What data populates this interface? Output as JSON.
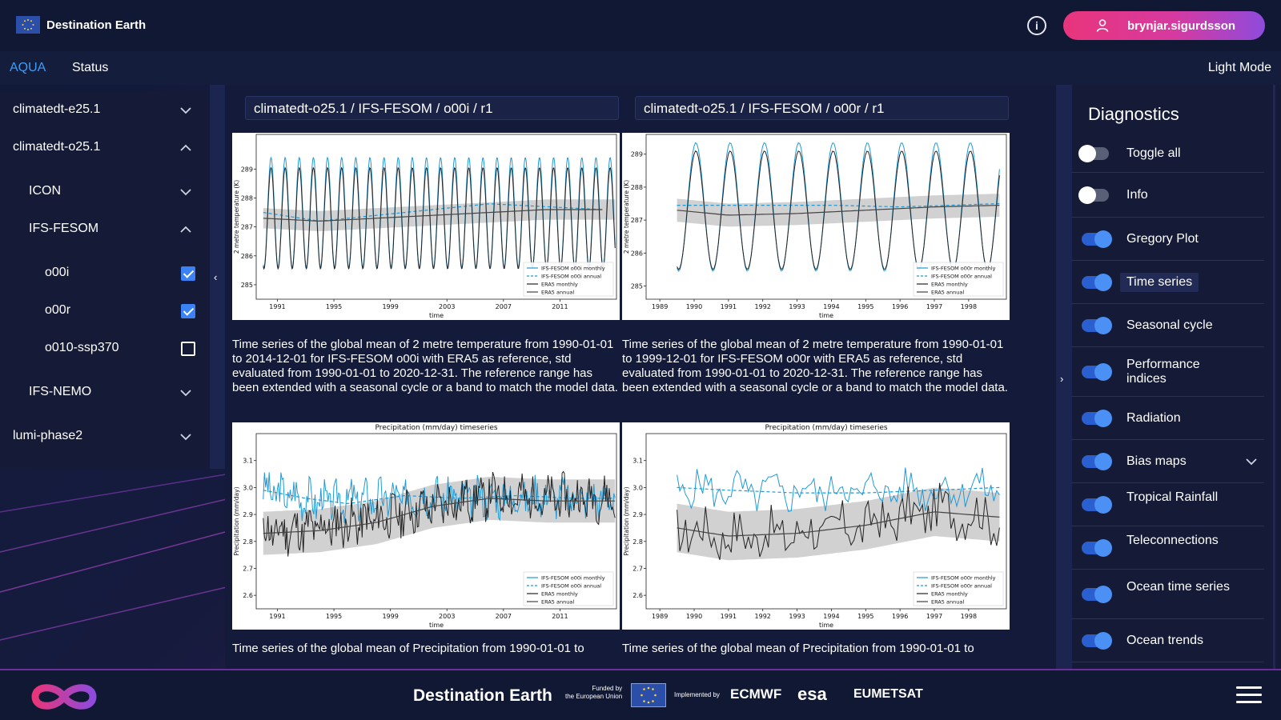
{
  "header": {
    "brand": "Destination Earth",
    "user": "brynjar.sigurdsson"
  },
  "nav": {
    "tabs": [
      {
        "label": "AQUA",
        "active": true
      },
      {
        "label": "Status",
        "active": false
      }
    ],
    "light_mode": "Light Mode"
  },
  "tree": {
    "items": [
      {
        "label": "climatedt-e25.1",
        "expanded": false
      },
      {
        "label": "climatedt-o25.1",
        "expanded": true
      },
      {
        "label": "ICON",
        "expanded": false
      },
      {
        "label": "IFS-FESOM",
        "expanded": true
      },
      {
        "label": "o00i",
        "checked": true
      },
      {
        "label": "o00r",
        "checked": true
      },
      {
        "label": "o010-ssp370",
        "checked": false
      },
      {
        "label": "IFS-NEMO",
        "expanded": false
      },
      {
        "label": "lumi-phase2",
        "expanded": false
      }
    ]
  },
  "panels": [
    {
      "path": "climatedt-o25.1 / IFS-FESOM / o00i / r1",
      "temp_caption": "Time series of the global mean of 2 metre temperature from 1990-01-01 to 2014-12-01 for IFS-FESOM o00i with ERA5 as reference, std evaluated from 1990-01-01 to 2020-12-31. The reference range has been extended with a seasonal cycle or a band to match the model data.",
      "precip_caption": "Time series of the global mean of Precipitation from 1990-01-01 to"
    },
    {
      "path": "climatedt-o25.1 / IFS-FESOM / o00r / r1",
      "temp_caption": "Time series of the global mean of 2 metre temperature from 1990-01-01 to 1999-12-01 for IFS-FESOM o00r with ERA5 as reference, std evaluated from 1990-01-01 to 2020-12-31. The reference range has been extended with a seasonal cycle or a band to match the model data.",
      "precip_caption": "Time series of the global mean of Precipitation from 1990-01-01 to"
    }
  ],
  "chart_data": [
    {
      "id": "temp_o00i",
      "type": "line",
      "title": "",
      "xlabel": "time",
      "ylabel": "2 metre temperature (K)",
      "xlim": [
        1989.5,
        2015
      ],
      "ylim": [
        284.5,
        290.2
      ],
      "xticks": [
        1991,
        1995,
        1999,
        2003,
        2007,
        2011
      ],
      "yticks": [
        285,
        286,
        287,
        288,
        289
      ],
      "legend": [
        "IFS-FESOM o00i monthly",
        "IFS-FESOM o00i annual",
        "ERA5 monthly",
        "ERA5 annual"
      ],
      "series": [
        {
          "name": "IFS-FESOM o00i monthly",
          "kind": "seasonal",
          "start": 1990,
          "end": 2014.9,
          "mean": 287.5,
          "amp": 1.9,
          "color": "#1f9ad6",
          "dash": false
        },
        {
          "name": "IFS-FESOM o00i annual",
          "kind": "trend",
          "start": 1990,
          "end": 2014.9,
          "x": [
            1990,
            1994,
            1998,
            2002,
            2006,
            2010,
            2014
          ],
          "y": [
            287.5,
            287.2,
            287.4,
            287.6,
            287.8,
            287.7,
            287.6
          ],
          "color": "#1f9ad6",
          "dash": true
        },
        {
          "name": "ERA5 monthly",
          "kind": "seasonal",
          "start": 1990,
          "end": 2014.9,
          "mean": 287.3,
          "amp": 1.75,
          "color": "#222222",
          "dash": false
        },
        {
          "name": "ERA5 annual",
          "kind": "trend",
          "start": 1990,
          "end": 2014.9,
          "x": [
            1990,
            1994,
            1998,
            2002,
            2006,
            2010,
            2014
          ],
          "y": [
            287.3,
            287.2,
            287.3,
            287.4,
            287.5,
            287.6,
            287.6
          ],
          "color": "#444444",
          "dash": false
        }
      ],
      "band": {
        "x": [
          1990,
          1994,
          1998,
          2002,
          2006,
          2010,
          2014.9
        ],
        "y": [
          287.3,
          287.2,
          287.3,
          287.4,
          287.5,
          287.6,
          287.6
        ],
        "half_width": 0.35
      }
    },
    {
      "id": "temp_o00r",
      "type": "line",
      "title": "",
      "xlabel": "time",
      "ylabel": "2 metre temperature (K)",
      "xlim": [
        1988.6,
        1999.1
      ],
      "ylim": [
        284.6,
        289.6
      ],
      "xticks": [
        1989,
        1990,
        1991,
        1992,
        1993,
        1994,
        1995,
        1996,
        1997,
        1998
      ],
      "yticks": [
        285,
        286,
        287,
        288,
        289
      ],
      "legend": [
        "IFS-FESOM o00r monthly",
        "IFS-FESOM o00r annual",
        "ERA5 monthly",
        "ERA5 annual"
      ],
      "series": [
        {
          "name": "IFS-FESOM o00r monthly",
          "kind": "seasonal",
          "start": 1989.5,
          "end": 1998.9,
          "mean": 287.4,
          "amp": 1.95,
          "color": "#1f9ad6",
          "dash": false
        },
        {
          "name": "IFS-FESOM o00r annual",
          "kind": "trend",
          "start": 1989.5,
          "end": 1998.9,
          "x": [
            1989.5,
            1992,
            1994,
            1996,
            1998.9
          ],
          "y": [
            287.45,
            287.45,
            287.45,
            287.4,
            287.5
          ],
          "color": "#1f9ad6",
          "dash": true
        },
        {
          "name": "ERA5 monthly",
          "kind": "seasonal",
          "start": 1989.5,
          "end": 1998.9,
          "mean": 287.3,
          "amp": 1.8,
          "color": "#222222",
          "dash": false
        },
        {
          "name": "ERA5 annual",
          "kind": "trend",
          "start": 1989.5,
          "end": 1998.9,
          "x": [
            1989.5,
            1991,
            1993,
            1995,
            1997,
            1998.9
          ],
          "y": [
            287.3,
            287.15,
            287.2,
            287.3,
            287.4,
            287.45
          ],
          "color": "#444444",
          "dash": false
        }
      ],
      "band": {
        "x": [
          1989.5,
          1991,
          1993,
          1995,
          1997,
          1998.9
        ],
        "y": [
          287.3,
          287.15,
          287.2,
          287.3,
          287.4,
          287.45
        ],
        "half_width": 0.35
      }
    },
    {
      "id": "precip_o00i",
      "type": "line",
      "title": "Precipitation (mm/day) timeseries",
      "xlabel": "time",
      "ylabel": "Precipitation (mm/day)",
      "xlim": [
        1989.5,
        2015
      ],
      "ylim": [
        2.55,
        3.2
      ],
      "xticks": [
        1991,
        1995,
        1999,
        2003,
        2007,
        2011
      ],
      "yticks": [
        2.6,
        2.7,
        2.8,
        2.9,
        3.0,
        3.1
      ],
      "legend": [
        "IFS-FESOM o00i monthly",
        "IFS-FESOM o00i annual",
        "ERA5 monthly",
        "ERA5 annual"
      ],
      "series": [
        {
          "name": "IFS-FESOM o00i monthly",
          "kind": "noisy",
          "start": 1990,
          "end": 2014.9,
          "x": [
            1990,
            1994,
            1998,
            2002,
            2006,
            2010,
            2014.9
          ],
          "y": [
            2.99,
            2.95,
            2.96,
            2.97,
            2.96,
            2.97,
            2.96
          ],
          "noise": 0.06,
          "seed": 3,
          "color": "#1f9ad6",
          "dash": false
        },
        {
          "name": "IFS-FESOM o00i annual",
          "kind": "trend",
          "start": 1990,
          "end": 2014.9,
          "x": [
            1990,
            1993,
            1996,
            2000,
            2004,
            2008,
            2012,
            2014.9
          ],
          "y": [
            2.99,
            2.96,
            2.94,
            2.97,
            2.96,
            2.97,
            2.96,
            2.96
          ],
          "color": "#1f9ad6",
          "dash": true
        },
        {
          "name": "ERA5 monthly",
          "kind": "noisy",
          "start": 1990,
          "end": 2014.9,
          "x": [
            1990,
            1994,
            1998,
            2002,
            2006,
            2010,
            2014.9
          ],
          "y": [
            2.83,
            2.85,
            2.88,
            2.93,
            2.97,
            2.96,
            2.96
          ],
          "noise": 0.07,
          "seed": 11,
          "color": "#222222",
          "dash": false
        },
        {
          "name": "ERA5 annual",
          "kind": "trend",
          "start": 1990,
          "end": 2014.9,
          "x": [
            1990,
            1994,
            1998,
            2002,
            2006,
            2010,
            2014.9
          ],
          "y": [
            2.83,
            2.84,
            2.87,
            2.93,
            2.96,
            2.95,
            2.95
          ],
          "color": "#444444",
          "dash": false
        }
      ],
      "band": {
        "x": [
          1990,
          1994,
          1998,
          2002,
          2006,
          2010,
          2014.9
        ],
        "y": [
          2.83,
          2.84,
          2.87,
          2.93,
          2.96,
          2.95,
          2.95
        ],
        "half_width": 0.08
      }
    },
    {
      "id": "precip_o00r",
      "type": "line",
      "title": "Precipitation (mm/day) timeseries",
      "xlabel": "time",
      "ylabel": "Precipitation (mm/day)",
      "xlim": [
        1988.6,
        1999.1
      ],
      "ylim": [
        2.55,
        3.2
      ],
      "xticks": [
        1989,
        1990,
        1991,
        1992,
        1993,
        1994,
        1995,
        1996,
        1997,
        1998
      ],
      "yticks": [
        2.6,
        2.7,
        2.8,
        2.9,
        3.0,
        3.1
      ],
      "legend": [
        "IFS-FESOM o00r monthly",
        "IFS-FESOM o00r annual",
        "ERA5 monthly",
        "ERA5 annual"
      ],
      "series": [
        {
          "name": "IFS-FESOM o00r monthly",
          "kind": "noisy",
          "start": 1989.5,
          "end": 1998.9,
          "x": [
            1989.5,
            1992,
            1994,
            1996,
            1998.9
          ],
          "y": [
            3.0,
            2.98,
            2.99,
            2.99,
            3.0
          ],
          "noise": 0.06,
          "seed": 5,
          "color": "#1f9ad6",
          "dash": false
        },
        {
          "name": "IFS-FESOM o00r annual",
          "kind": "trend",
          "start": 1989.5,
          "end": 1998.9,
          "x": [
            1989.5,
            1991,
            1993,
            1995,
            1997,
            1998.9
          ],
          "y": [
            3.0,
            2.99,
            2.98,
            2.98,
            2.99,
            3.0
          ],
          "color": "#1f9ad6",
          "dash": true
        },
        {
          "name": "ERA5 monthly",
          "kind": "noisy",
          "start": 1989.5,
          "end": 1998.9,
          "x": [
            1989.5,
            1991,
            1993,
            1995,
            1997,
            1998.9
          ],
          "y": [
            2.85,
            2.82,
            2.83,
            2.86,
            2.92,
            2.88
          ],
          "noise": 0.08,
          "seed": 17,
          "color": "#222222",
          "dash": false
        },
        {
          "name": "ERA5 annual",
          "kind": "trend",
          "start": 1989.5,
          "end": 1998.9,
          "x": [
            1989.5,
            1991,
            1993,
            1995,
            1997,
            1998.9
          ],
          "y": [
            2.85,
            2.82,
            2.83,
            2.86,
            2.91,
            2.89
          ],
          "color": "#444444",
          "dash": false
        }
      ],
      "band": {
        "x": [
          1989.5,
          1991,
          1993,
          1995,
          1997,
          1998.9
        ],
        "y": [
          2.85,
          2.82,
          2.83,
          2.86,
          2.91,
          2.89
        ],
        "half_width": 0.09
      }
    }
  ],
  "diagnostics": {
    "title": "Diagnostics",
    "items": [
      {
        "label": "Toggle all",
        "on": false
      },
      {
        "label": "Info",
        "on": false
      },
      {
        "label": "Gregory Plot",
        "on": true
      },
      {
        "label": "Time series",
        "on": true,
        "highlight": true
      },
      {
        "label": "Seasonal cycle",
        "on": true
      },
      {
        "label": "Performance indices",
        "on": true
      },
      {
        "label": "Radiation",
        "on": true
      },
      {
        "label": "Bias maps",
        "on": true,
        "expandable": true
      },
      {
        "label": "Tropical Rainfall",
        "on": true
      },
      {
        "label": "Teleconnections",
        "on": true
      },
      {
        "label": "Ocean time series",
        "on": true
      },
      {
        "label": "Ocean trends",
        "on": true
      }
    ]
  },
  "footer": {
    "brand": "Destination Earth",
    "funded_line1": "Funded by",
    "funded_line2": "the European Union",
    "implemented": "Implemented by",
    "ecmwf": "ECMWF",
    "esa": "esa",
    "eumetsat": "EUMETSAT"
  },
  "colors": {
    "accent_blue": "#3d9dfa",
    "toggle_on": "#4a90f5",
    "user_gradient_start": "#e8357b",
    "user_gradient_end": "#8e4bdc"
  }
}
